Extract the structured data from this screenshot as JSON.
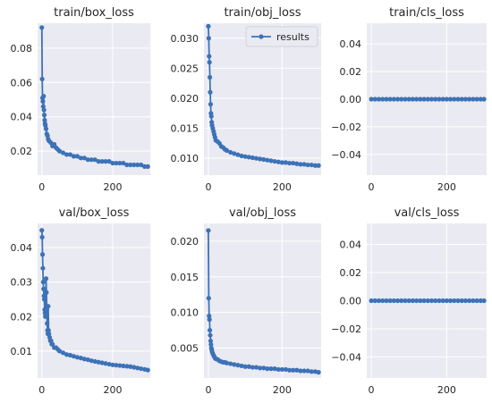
{
  "chart_data": [
    {
      "type": "line",
      "title": "train/box_loss",
      "xlim": [
        -12,
        306
      ],
      "ylim": [
        0.006,
        0.0945
      ],
      "xticks": [
        0,
        200
      ],
      "yticks": [
        0.02,
        0.04,
        0.06,
        0.08
      ],
      "ytick_labels": [
        "0.02",
        "0.04",
        "0.06",
        "0.08"
      ],
      "grid": true,
      "series": [
        {
          "x": [
            0,
            1,
            2,
            3,
            4,
            5,
            6,
            7,
            8,
            9,
            10,
            12,
            14,
            16,
            18,
            20,
            25,
            30,
            35,
            40,
            45,
            50,
            60,
            70,
            80,
            90,
            100,
            110,
            120,
            130,
            140,
            150,
            160,
            170,
            180,
            190,
            200,
            210,
            220,
            230,
            240,
            250,
            260,
            270,
            280,
            290,
            299
          ],
          "y": [
            0.092,
            0.062,
            0.051,
            0.049,
            0.046,
            0.052,
            0.044,
            0.041,
            0.038,
            0.036,
            0.035,
            0.033,
            0.03,
            0.029,
            0.027,
            0.026,
            0.025,
            0.023,
            0.024,
            0.022,
            0.021,
            0.02,
            0.019,
            0.018,
            0.018,
            0.017,
            0.017,
            0.016,
            0.016,
            0.015,
            0.015,
            0.015,
            0.014,
            0.014,
            0.014,
            0.014,
            0.013,
            0.013,
            0.013,
            0.013,
            0.012,
            0.012,
            0.012,
            0.012,
            0.012,
            0.011,
            0.011
          ]
        }
      ]
    },
    {
      "type": "line",
      "title": "train/obj_loss",
      "xlim": [
        -12,
        306
      ],
      "ylim": [
        0.0072,
        0.0325
      ],
      "xticks": [
        0,
        200
      ],
      "yticks": [
        0.01,
        0.015,
        0.02,
        0.025,
        0.03
      ],
      "ytick_labels": [
        "0.010",
        "0.015",
        "0.020",
        "0.025",
        "0.030"
      ],
      "grid": true,
      "legend": {
        "position": "top-right",
        "label": "results"
      },
      "series": [
        {
          "name": "results",
          "x": [
            0,
            1,
            2,
            3,
            4,
            5,
            6,
            7,
            8,
            9,
            10,
            12,
            14,
            16,
            18,
            20,
            25,
            30,
            35,
            40,
            45,
            50,
            60,
            70,
            80,
            90,
            100,
            110,
            120,
            130,
            140,
            150,
            160,
            170,
            180,
            190,
            200,
            210,
            220,
            230,
            240,
            250,
            260,
            270,
            280,
            290,
            299
          ],
          "y": [
            0.032,
            0.03,
            0.027,
            0.026,
            0.0235,
            0.021,
            0.019,
            0.0175,
            0.017,
            0.016,
            0.0155,
            0.015,
            0.0145,
            0.014,
            0.0135,
            0.013,
            0.0128,
            0.0125,
            0.012,
            0.0118,
            0.0115,
            0.0113,
            0.011,
            0.0108,
            0.0106,
            0.0104,
            0.0103,
            0.0102,
            0.0101,
            0.01,
            0.0099,
            0.0098,
            0.0097,
            0.0096,
            0.0095,
            0.0094,
            0.0093,
            0.0093,
            0.0092,
            0.0092,
            0.0091,
            0.009,
            0.009,
            0.0089,
            0.0089,
            0.0088,
            0.0088
          ]
        }
      ]
    },
    {
      "type": "line",
      "title": "train/cls_loss",
      "xlim": [
        -12,
        306
      ],
      "ylim": [
        -0.055,
        0.055
      ],
      "xticks": [
        0,
        200
      ],
      "yticks": [
        -0.04,
        -0.02,
        0.0,
        0.02,
        0.04
      ],
      "ytick_labels": [
        "−0.04",
        "−0.02",
        "0.00",
        "0.02",
        "0.04"
      ],
      "grid": true,
      "series": [
        {
          "x": [
            0,
            10,
            20,
            30,
            40,
            50,
            60,
            70,
            80,
            90,
            100,
            110,
            120,
            130,
            140,
            150,
            160,
            170,
            180,
            190,
            200,
            210,
            220,
            230,
            240,
            250,
            260,
            270,
            280,
            290,
            299
          ],
          "y": [
            0,
            0,
            0,
            0,
            0,
            0,
            0,
            0,
            0,
            0,
            0,
            0,
            0,
            0,
            0,
            0,
            0,
            0,
            0,
            0,
            0,
            0,
            0,
            0,
            0,
            0,
            0,
            0,
            0,
            0,
            0
          ]
        }
      ]
    },
    {
      "type": "line",
      "title": "val/box_loss",
      "xlim": [
        -12,
        306
      ],
      "ylim": [
        0.0022,
        0.047
      ],
      "xticks": [
        0,
        200
      ],
      "yticks": [
        0.01,
        0.02,
        0.03,
        0.04
      ],
      "ytick_labels": [
        "0.01",
        "0.02",
        "0.03",
        "0.04"
      ],
      "grid": true,
      "series": [
        {
          "x": [
            0,
            1,
            2,
            3,
            4,
            5,
            6,
            7,
            8,
            9,
            10,
            11,
            12,
            13,
            14,
            15,
            16,
            17,
            18,
            19,
            20,
            22,
            24,
            26,
            28,
            30,
            35,
            40,
            45,
            50,
            60,
            70,
            80,
            90,
            100,
            110,
            120,
            130,
            140,
            150,
            160,
            170,
            180,
            190,
            200,
            210,
            220,
            230,
            240,
            250,
            260,
            270,
            280,
            290,
            299
          ],
          "y": [
            0.045,
            0.043,
            0.038,
            0.034,
            0.03,
            0.028,
            0.026,
            0.025,
            0.022,
            0.021,
            0.02,
            0.021,
            0.031,
            0.027,
            0.022,
            0.018,
            0.016,
            0.015,
            0.023,
            0.016,
            0.015,
            0.014,
            0.013,
            0.013,
            0.012,
            0.012,
            0.011,
            0.011,
            0.0105,
            0.01,
            0.0095,
            0.009,
            0.0088,
            0.0085,
            0.0082,
            0.008,
            0.0077,
            0.0075,
            0.0072,
            0.007,
            0.0068,
            0.0066,
            0.0064,
            0.0062,
            0.006,
            0.0059,
            0.0058,
            0.0057,
            0.0056,
            0.0055,
            0.0053,
            0.0051,
            0.0049,
            0.0047,
            0.0045
          ]
        }
      ]
    },
    {
      "type": "line",
      "title": "val/obj_loss",
      "xlim": [
        -12,
        306
      ],
      "ylim": [
        0.0008,
        0.0225
      ],
      "xticks": [
        0,
        200
      ],
      "yticks": [
        0.005,
        0.01,
        0.015,
        0.02
      ],
      "ytick_labels": [
        "0.005",
        "0.010",
        "0.015",
        "0.020"
      ],
      "grid": true,
      "series": [
        {
          "x": [
            0,
            1,
            2,
            3,
            4,
            5,
            6,
            7,
            8,
            9,
            10,
            12,
            14,
            16,
            18,
            20,
            25,
            30,
            35,
            40,
            45,
            50,
            60,
            70,
            80,
            90,
            100,
            110,
            120,
            130,
            140,
            150,
            160,
            170,
            180,
            190,
            200,
            210,
            220,
            230,
            240,
            250,
            260,
            270,
            280,
            290,
            299
          ],
          "y": [
            0.0215,
            0.012,
            0.0095,
            0.009,
            0.0075,
            0.0068,
            0.006,
            0.0055,
            0.005,
            0.0048,
            0.0045,
            0.0042,
            0.004,
            0.0038,
            0.0036,
            0.0035,
            0.0034,
            0.0032,
            0.0031,
            0.003,
            0.003,
            0.0029,
            0.0028,
            0.0027,
            0.0026,
            0.0025,
            0.0024,
            0.0024,
            0.0023,
            0.0023,
            0.0022,
            0.0022,
            0.0021,
            0.0021,
            0.0021,
            0.002,
            0.002,
            0.002,
            0.0019,
            0.0019,
            0.0019,
            0.0018,
            0.0018,
            0.0018,
            0.0017,
            0.0017,
            0.0016
          ]
        }
      ]
    },
    {
      "type": "line",
      "title": "val/cls_loss",
      "xlim": [
        -12,
        306
      ],
      "ylim": [
        -0.055,
        0.055
      ],
      "xticks": [
        0,
        200
      ],
      "yticks": [
        -0.04,
        -0.02,
        0.0,
        0.02,
        0.04
      ],
      "ytick_labels": [
        "−0.04",
        "−0.02",
        "0.00",
        "0.02",
        "0.04"
      ],
      "grid": true,
      "series": [
        {
          "x": [
            0,
            10,
            20,
            30,
            40,
            50,
            60,
            70,
            80,
            90,
            100,
            110,
            120,
            130,
            140,
            150,
            160,
            170,
            180,
            190,
            200,
            210,
            220,
            230,
            240,
            250,
            260,
            270,
            280,
            290,
            299
          ],
          "y": [
            0,
            0,
            0,
            0,
            0,
            0,
            0,
            0,
            0,
            0,
            0,
            0,
            0,
            0,
            0,
            0,
            0,
            0,
            0,
            0,
            0,
            0,
            0,
            0,
            0,
            0,
            0,
            0,
            0,
            0,
            0
          ]
        }
      ]
    }
  ],
  "colors": {
    "line": "#3c72b7",
    "panel_bg": "#eaeaf2",
    "grid": "#ffffff",
    "text": "#262626"
  }
}
